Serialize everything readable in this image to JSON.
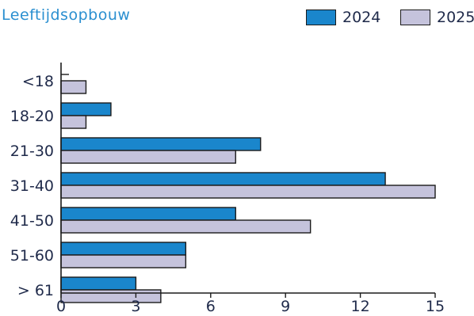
{
  "chart_data": {
    "type": "bar",
    "orientation": "horizontal",
    "title": "Leeftijdsopbouw",
    "categories": [
      "<18",
      "18-20",
      "21-30",
      "31-40",
      "41-50",
      "51-60",
      "> 61"
    ],
    "series": [
      {
        "name": "2024",
        "values": [
          0,
          2,
          8,
          13,
          7,
          5,
          3
        ],
        "color": "#1a86cc"
      },
      {
        "name": "2025",
        "values": [
          1,
          1,
          7,
          15,
          10,
          5,
          4
        ],
        "color": "#c5c3dc"
      }
    ],
    "xlim": [
      0,
      15
    ],
    "xticks": [
      "0",
      "3",
      "6",
      "9",
      "12",
      "15"
    ],
    "grid": false,
    "legend": "top-right"
  }
}
